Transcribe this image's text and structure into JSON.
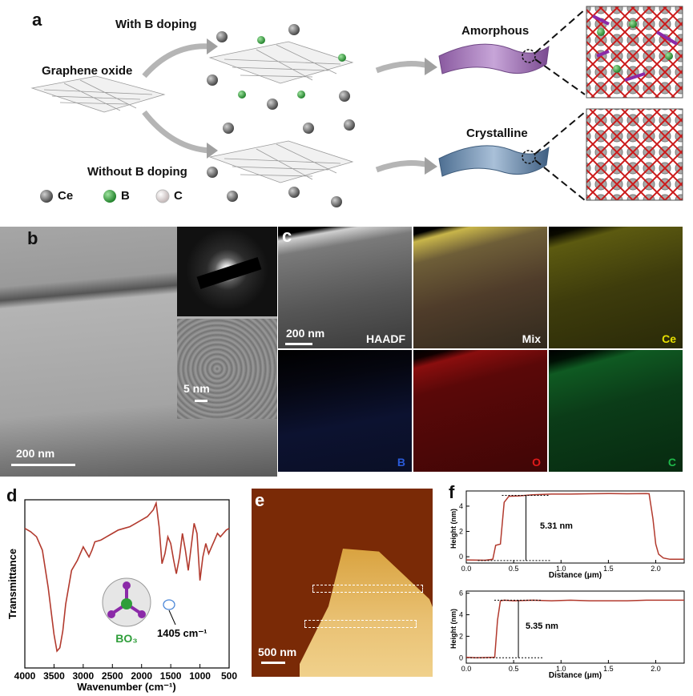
{
  "panel_a": {
    "label": "a",
    "go_label": "Graphene oxide",
    "with_b": "With B doping",
    "without_b": "Without B doping",
    "amorphous": "Amorphous",
    "crystalline": "Crystalline",
    "legend": [
      {
        "symbol": "Ce",
        "color": "#6f6f6f"
      },
      {
        "symbol": "B",
        "color": "#2f9e3a"
      },
      {
        "symbol": "C",
        "color": "#efe6e6"
      }
    ]
  },
  "panel_b": {
    "label": "b",
    "scale_main": "200 nm",
    "scale_inset": "5 nm"
  },
  "panel_c": {
    "label": "c",
    "scale": "200 nm",
    "maps": [
      {
        "name": "HAADF",
        "color": "#ffffff"
      },
      {
        "name": "Mix",
        "color": "#ffffff"
      },
      {
        "name": "Ce",
        "color": "#e8e000"
      },
      {
        "name": "B",
        "color": "#2a5ad8"
      },
      {
        "name": "O",
        "color": "#e01a1a"
      },
      {
        "name": "C",
        "color": "#1fb84a"
      }
    ]
  },
  "panel_d": {
    "label": "d",
    "annotation": "1405 cm⁻¹",
    "bo3": "BO₃"
  },
  "panel_e": {
    "label": "e",
    "scale": "500 nm"
  },
  "panel_f": {
    "label": "f",
    "top_annotation": "5.31 nm",
    "bottom_annotation": "5.35 nm"
  },
  "chart_data": [
    {
      "type": "line",
      "panel": "d",
      "xlabel": "Wavenumber (cm⁻¹)",
      "ylabel": "Transmittance",
      "xlim": [
        4000,
        500
      ],
      "x_reversed": true,
      "xticks": [
        4000,
        3500,
        3000,
        2500,
        2000,
        1500,
        1000,
        500
      ],
      "yticks_shown": false,
      "series": [
        {
          "color": "#b23a2e",
          "x": [
            4000,
            3900,
            3800,
            3700,
            3600,
            3500,
            3450,
            3400,
            3350,
            3300,
            3200,
            3100,
            3000,
            2900,
            2850,
            2800,
            2700,
            2600,
            2500,
            2400,
            2300,
            2200,
            2100,
            2000,
            1900,
            1800,
            1750,
            1700,
            1650,
            1600,
            1550,
            1500,
            1450,
            1405,
            1350,
            1300,
            1250,
            1200,
            1150,
            1100,
            1050,
            1000,
            950,
            900,
            850,
            800,
            750,
            700,
            650,
            600,
            550,
            500
          ],
          "y": [
            0.83,
            0.81,
            0.78,
            0.7,
            0.48,
            0.2,
            0.1,
            0.12,
            0.22,
            0.38,
            0.58,
            0.64,
            0.72,
            0.66,
            0.7,
            0.75,
            0.76,
            0.78,
            0.8,
            0.82,
            0.83,
            0.84,
            0.86,
            0.88,
            0.9,
            0.94,
            0.98,
            0.84,
            0.62,
            0.68,
            0.78,
            0.74,
            0.64,
            0.56,
            0.66,
            0.8,
            0.7,
            0.58,
            0.72,
            0.86,
            0.8,
            0.52,
            0.66,
            0.74,
            0.68,
            0.72,
            0.76,
            0.8,
            0.78,
            0.8,
            0.82,
            0.83
          ]
        }
      ]
    },
    {
      "type": "line",
      "panel": "f-top",
      "xlabel": "Distance (μm)",
      "ylabel": "Height (nm)",
      "xlim": [
        0.0,
        2.3
      ],
      "ylim": [
        -0.5,
        5.2
      ],
      "xticks": [
        0.0,
        0.5,
        1.0,
        1.5,
        2.0
      ],
      "yticks": [
        0,
        2,
        4
      ],
      "series": [
        {
          "color": "#b23a2e",
          "x": [
            0.0,
            0.2,
            0.28,
            0.31,
            0.36,
            0.4,
            0.45,
            0.55,
            0.7,
            0.9,
            1.1,
            1.3,
            1.5,
            1.7,
            1.9,
            1.93,
            1.97,
            2.0,
            2.03,
            2.08,
            2.15,
            2.3
          ],
          "y": [
            -0.25,
            -0.28,
            -0.2,
            0.9,
            1.0,
            4.3,
            4.78,
            4.8,
            4.9,
            4.95,
            4.95,
            4.98,
            5.0,
            4.98,
            5.0,
            4.98,
            3.0,
            1.0,
            0.2,
            -0.1,
            -0.2,
            -0.2
          ]
        }
      ]
    },
    {
      "type": "line",
      "panel": "f-bottom",
      "xlabel": "Distance (μm)",
      "ylabel": "Height (nm)",
      "xlim": [
        0.0,
        2.3
      ],
      "ylim": [
        -0.5,
        6.2
      ],
      "xticks": [
        0.0,
        0.5,
        1.0,
        1.5,
        2.0
      ],
      "yticks": [
        0,
        2,
        4,
        6
      ],
      "series": [
        {
          "color": "#b23a2e",
          "x": [
            0.0,
            0.1,
            0.2,
            0.3,
            0.33,
            0.36,
            0.4,
            0.5,
            0.7,
            0.9,
            1.1,
            1.3,
            1.5,
            1.7,
            1.9,
            2.1,
            2.3
          ],
          "y": [
            0.05,
            0.0,
            0.02,
            0.05,
            3.5,
            5.3,
            5.35,
            5.3,
            5.35,
            5.3,
            5.35,
            5.3,
            5.3,
            5.3,
            5.35,
            5.35,
            5.35
          ]
        }
      ]
    }
  ]
}
